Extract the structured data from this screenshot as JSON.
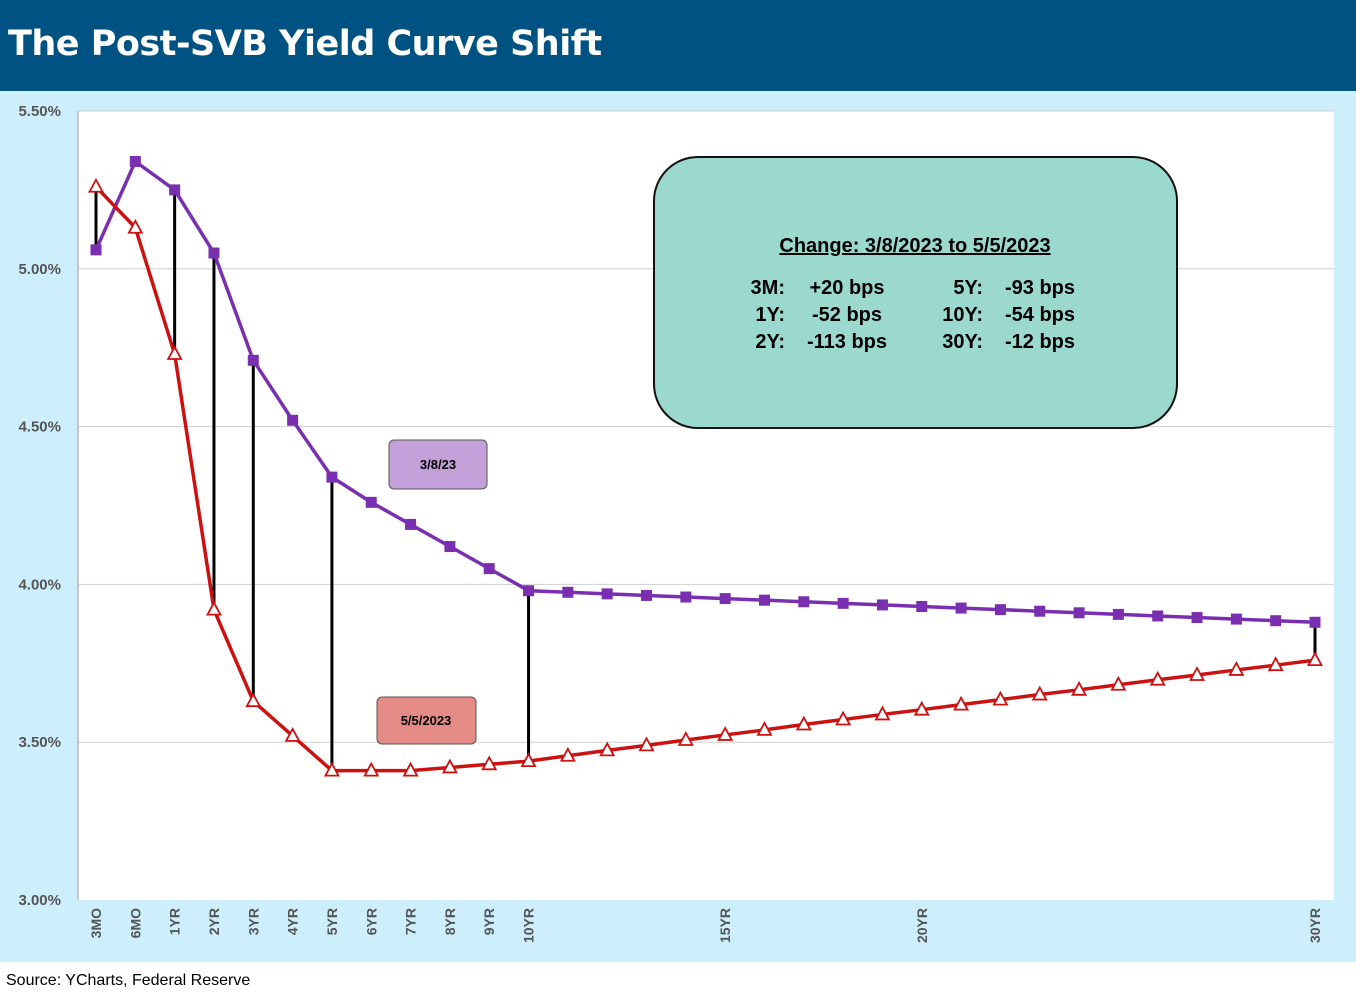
{
  "header": {
    "title": "The Post-SVB Yield Curve Shift"
  },
  "source": "Source: YCharts, Federal Reserve",
  "colors": {
    "header_bg": "#005283",
    "series_3823": "#7a2fb0",
    "series_552023": "#cc1111",
    "annotation_box": "#9bd9cf",
    "label_3823_bg": "#c4a0d8",
    "label_552023_bg": "#e48b85"
  },
  "annotation": {
    "title": "Change: 3/8/2023 to 5/5/2023",
    "rows": [
      {
        "l_label": "3M:",
        "l_value": "+20 bps",
        "r_label": "5Y:",
        "r_value": "-93 bps"
      },
      {
        "l_label": "1Y:",
        "l_value": "-52 bps",
        "r_label": "10Y:",
        "r_value": "-54 bps"
      },
      {
        "l_label": "2Y:",
        "l_value": "-113 bps",
        "r_label": "30Y:",
        "r_value": "-12 bps"
      }
    ]
  },
  "chart_data": {
    "type": "line",
    "title": "The Post-SVB Yield Curve Shift",
    "ylim": [
      3.0,
      5.5
    ],
    "y_ticks": [
      "3.00%",
      "3.50%",
      "4.00%",
      "4.50%",
      "5.00%",
      "5.50%"
    ],
    "y_tick_values": [
      3.0,
      3.5,
      4.0,
      4.5,
      5.0,
      5.5
    ],
    "x_tick_labels": [
      "3MO",
      "6MO",
      "1YR",
      "2YR",
      "3YR",
      "4YR",
      "5YR",
      "6YR",
      "7YR",
      "8YR",
      "9YR",
      "10YR",
      "15YR",
      "20YR",
      "30YR"
    ],
    "x_tick_index": [
      0,
      1,
      2,
      3,
      4,
      5,
      6,
      7,
      8,
      9,
      10,
      11,
      16,
      21,
      31
    ],
    "grid": true,
    "series": [
      {
        "name": "3/8/23",
        "marker": "square",
        "values": [
          5.06,
          5.34,
          5.25,
          5.05,
          4.71,
          4.52,
          4.34,
          4.26,
          4.19,
          4.12,
          4.05,
          3.98,
          3.975,
          3.97,
          3.965,
          3.96,
          3.955,
          3.95,
          3.945,
          3.94,
          3.935,
          3.93,
          3.925,
          3.92,
          3.915,
          3.91,
          3.905,
          3.9,
          3.895,
          3.89,
          3.885,
          3.88
        ]
      },
      {
        "name": "5/5/2023",
        "marker": "triangle",
        "values": [
          5.26,
          5.13,
          4.73,
          3.92,
          3.63,
          3.52,
          3.41,
          3.41,
          3.41,
          3.42,
          3.43,
          3.44,
          3.457,
          3.474,
          3.49,
          3.507,
          3.523,
          3.539,
          3.556,
          3.572,
          3.588,
          3.603,
          3.619,
          3.635,
          3.651,
          3.666,
          3.682,
          3.698,
          3.713,
          3.729,
          3.744,
          3.76
        ]
      }
    ],
    "change_markers_index": [
      0,
      2,
      3,
      4,
      6,
      11,
      31
    ]
  }
}
